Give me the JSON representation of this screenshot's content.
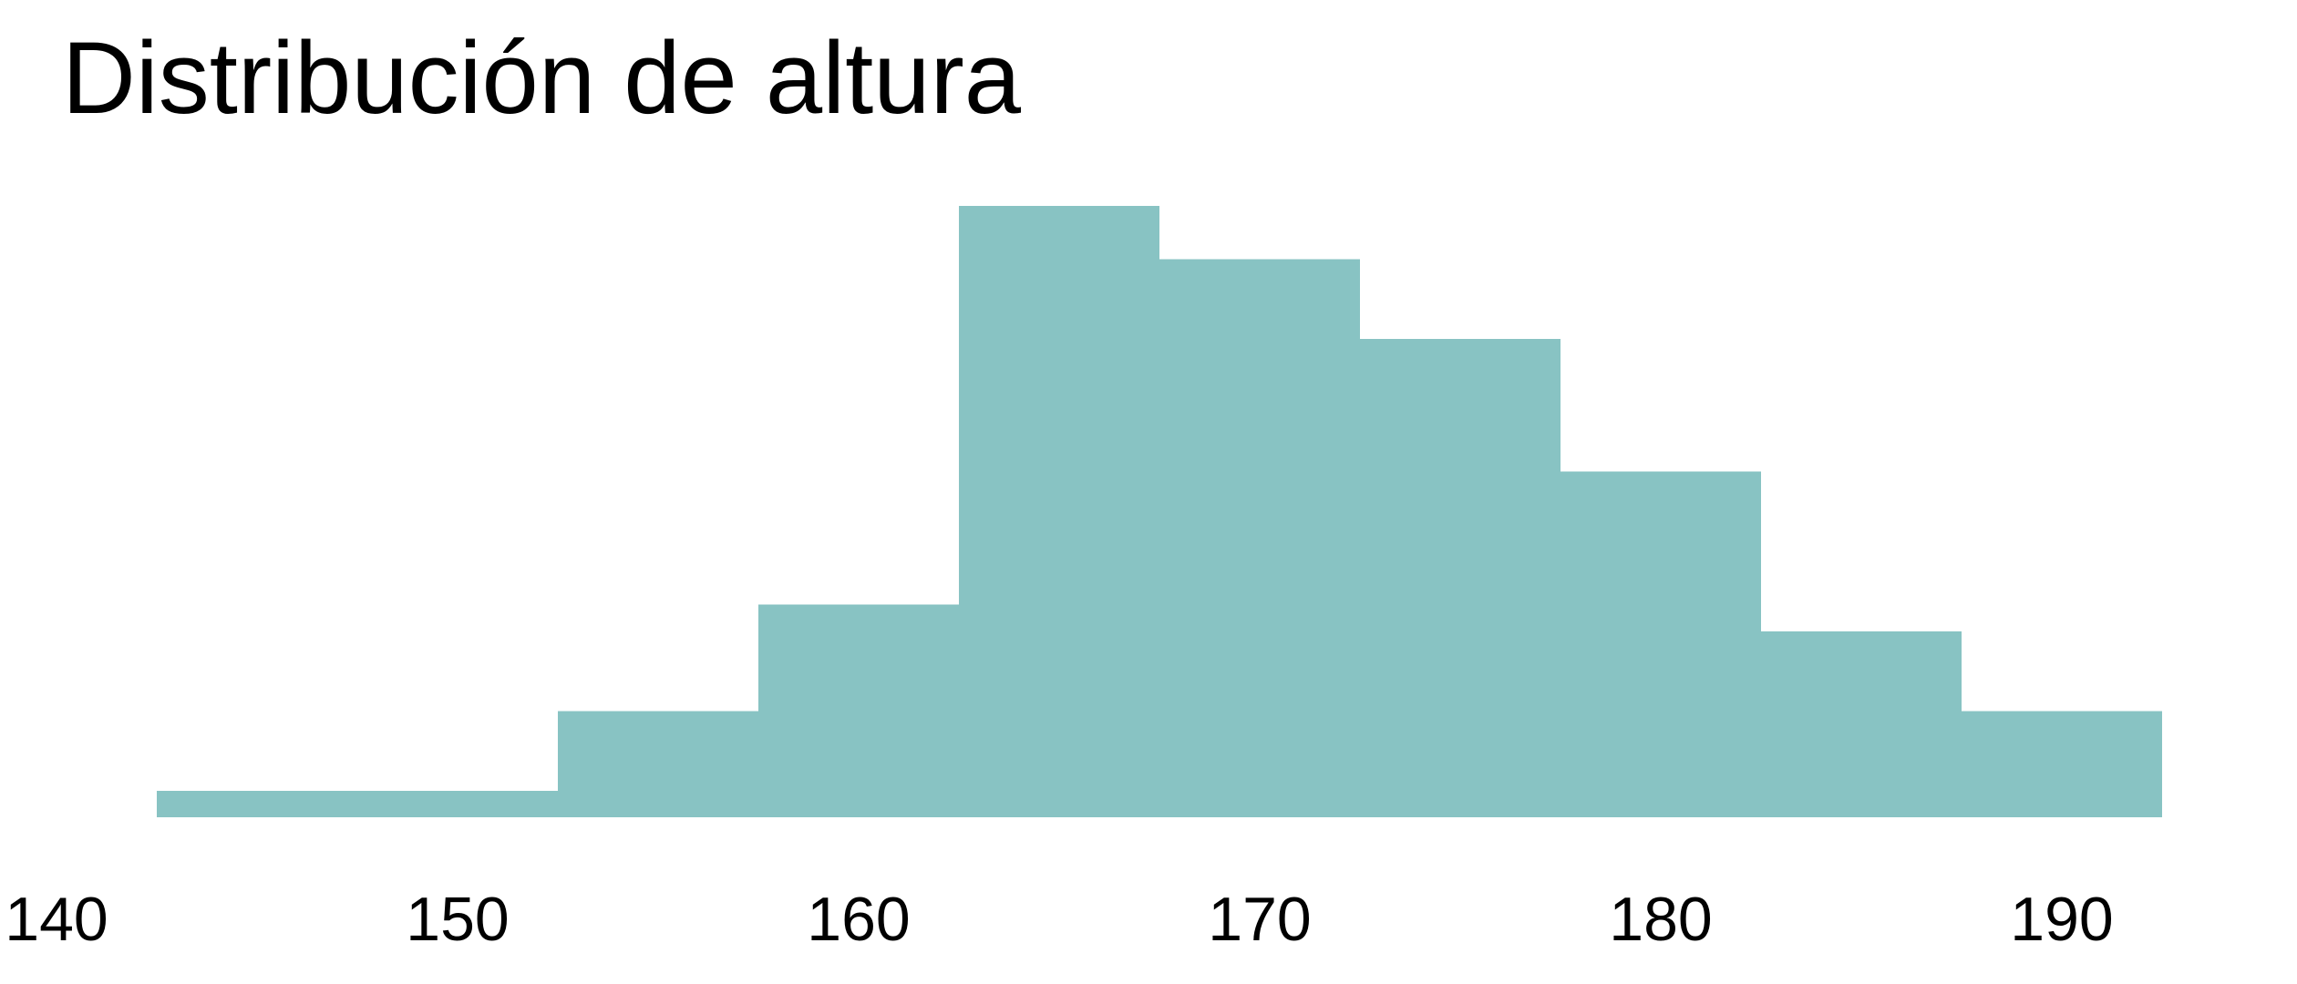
{
  "chart_data": {
    "type": "bar",
    "subtype": "histogram",
    "title": "Distribución de altura",
    "xlabel": "",
    "ylabel": "",
    "bins": [
      {
        "start": 142.5,
        "end": 152.5,
        "count": 1
      },
      {
        "start": 152.5,
        "end": 157.5,
        "count": 4
      },
      {
        "start": 157.5,
        "end": 162.5,
        "count": 8
      },
      {
        "start": 162.5,
        "end": 167.5,
        "count": 23
      },
      {
        "start": 167.5,
        "end": 172.5,
        "count": 21
      },
      {
        "start": 172.5,
        "end": 177.5,
        "count": 18
      },
      {
        "start": 177.5,
        "end": 182.5,
        "count": 13
      },
      {
        "start": 182.5,
        "end": 187.5,
        "count": 7
      },
      {
        "start": 187.5,
        "end": 192.5,
        "count": 4
      }
    ],
    "xticks": [
      140,
      150,
      160,
      170,
      180,
      190
    ],
    "xtick_labels": [
      "140",
      "150",
      "160",
      "170",
      "180",
      "190"
    ],
    "xlim": [
      140,
      195
    ],
    "ylim": [
      0,
      23
    ],
    "y_axis_visible": false,
    "grid": false,
    "legend": "none",
    "colors": {
      "bar": "#88C3C3",
      "text": "#000000",
      "background": "#FFFFFF"
    }
  }
}
